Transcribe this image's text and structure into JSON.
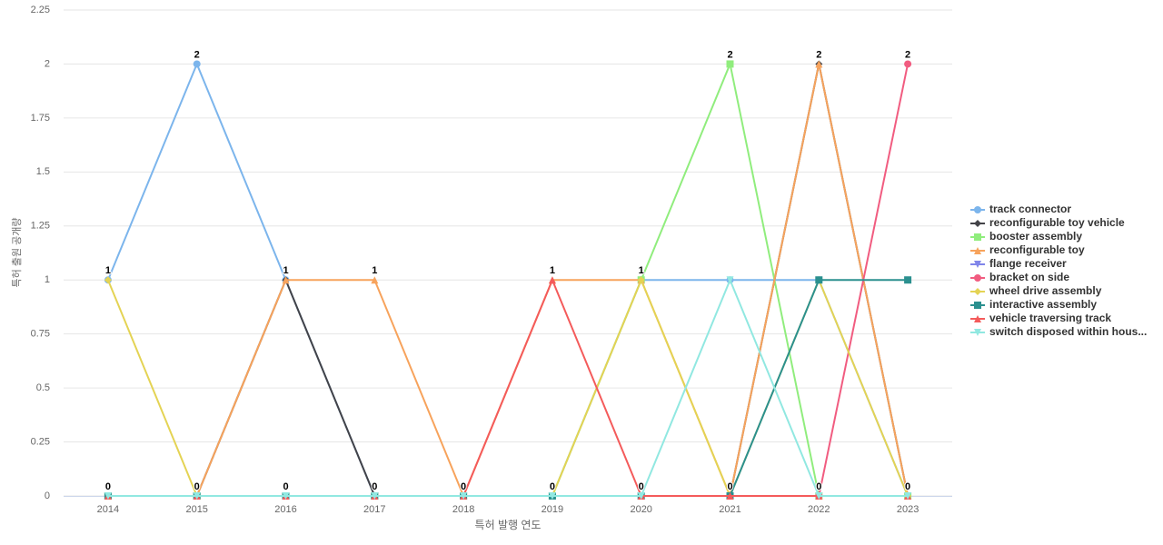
{
  "chart_data": {
    "type": "line",
    "x_label": "특허 발행 연도",
    "y_label": "특허 출원 공개량",
    "categories": [
      "2014",
      "2015",
      "2016",
      "2017",
      "2018",
      "2019",
      "2020",
      "2021",
      "2022",
      "2023"
    ],
    "ylim": [
      0,
      2.25
    ],
    "yticks": [
      0,
      0.25,
      0.5,
      0.75,
      1,
      1.25,
      1.5,
      1.75,
      2,
      2.25
    ],
    "grid": true,
    "legend": "right",
    "series": [
      {
        "name": "track connector",
        "color": "#7cb5ec",
        "values": [
          1,
          2,
          1,
          0,
          0,
          0,
          1,
          1,
          1,
          0
        ]
      },
      {
        "name": "reconfigurable toy vehicle",
        "color": "#434348",
        "values": [
          0,
          0,
          1,
          0,
          0,
          0,
          0,
          0,
          2,
          0
        ]
      },
      {
        "name": "booster assembly",
        "color": "#90ed7d",
        "values": [
          0,
          0,
          0,
          0,
          0,
          0,
          1,
          2,
          0,
          0
        ]
      },
      {
        "name": "reconfigurable toy",
        "color": "#f7a35c",
        "values": [
          0,
          0,
          1,
          1,
          0,
          1,
          1,
          0,
          2,
          0
        ]
      },
      {
        "name": "flange receiver",
        "color": "#8085e9",
        "values": [
          0,
          0,
          0,
          0,
          0,
          0,
          0,
          0,
          0,
          0
        ]
      },
      {
        "name": "bracket on side",
        "color": "#f15c80",
        "values": [
          0,
          0,
          0,
          0,
          0,
          0,
          0,
          0,
          0,
          2
        ]
      },
      {
        "name": "wheel drive assembly",
        "color": "#e4d354",
        "values": [
          1,
          0,
          0,
          0,
          0,
          0,
          1,
          0,
          1,
          0
        ]
      },
      {
        "name": "interactive assembly",
        "color": "#2b908f",
        "values": [
          0,
          0,
          0,
          0,
          0,
          0,
          0,
          0,
          1,
          1
        ]
      },
      {
        "name": "vehicle traversing track",
        "color": "#f45b5b",
        "values": [
          0,
          0,
          0,
          0,
          0,
          1,
          0,
          0,
          0,
          0
        ]
      },
      {
        "name": "switch disposed within hous...",
        "color": "#91e8e1",
        "values": [
          0,
          0,
          0,
          0,
          0,
          0,
          0,
          1,
          0,
          0
        ]
      }
    ]
  }
}
